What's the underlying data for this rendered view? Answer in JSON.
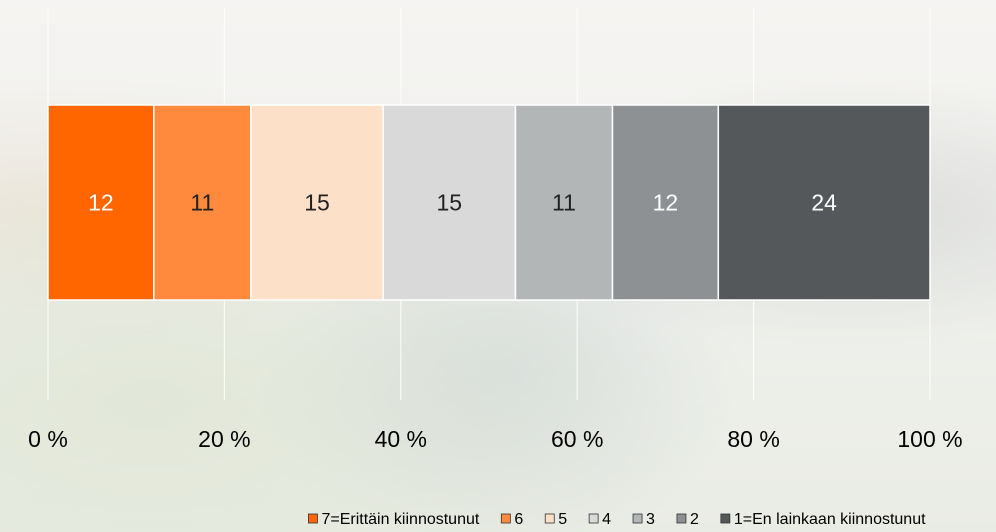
{
  "chart_data": {
    "type": "stacked-bar-horizontal",
    "series": [
      {
        "name": "7=Erittäin kiinnostunut",
        "color": "#ff6600",
        "values": [
          12
        ]
      },
      {
        "name": "6",
        "color": "#ff8a3d",
        "values": [
          11
        ]
      },
      {
        "name": "5",
        "color": "#fde0c8",
        "values": [
          15
        ]
      },
      {
        "name": "4",
        "color": "#d9d9d9",
        "values": [
          15
        ]
      },
      {
        "name": "3",
        "color": "#b3b6b7",
        "values": [
          11
        ]
      },
      {
        "name": "2",
        "color": "#8e9193",
        "values": [
          12
        ]
      },
      {
        "name": "1=En lainkaan kiinnostunut",
        "color": "#54585a",
        "values": [
          24
        ]
      }
    ],
    "xlim": [
      0,
      100
    ],
    "xticks": [
      {
        "value": 0,
        "label": "0 %"
      },
      {
        "value": 20,
        "label": "20 %"
      },
      {
        "value": 40,
        "label": "40 %"
      },
      {
        "value": 60,
        "label": "60 %"
      },
      {
        "value": 80,
        "label": "80 %"
      },
      {
        "value": 100,
        "label": "100 %"
      }
    ],
    "grid": true,
    "legend": "bottom"
  }
}
